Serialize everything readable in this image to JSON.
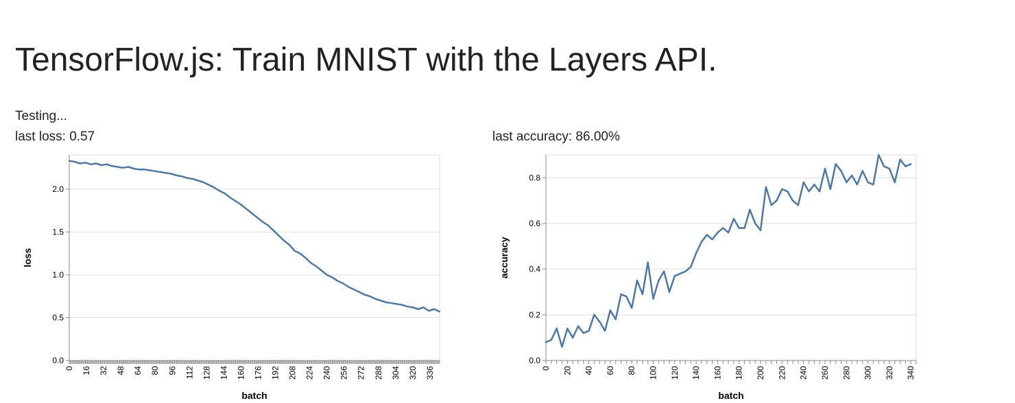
{
  "page": {
    "title": "TensorFlow.js: Train MNIST with the Layers API.",
    "status": "Testing...",
    "last_loss": "last loss: 0.57",
    "last_accuracy": "last accuracy: 86.00%"
  },
  "colors": {
    "line": "#4c78a8",
    "grid": "#dddddd",
    "axis": "#888888"
  },
  "chart_data": [
    {
      "type": "line",
      "title": "",
      "xlabel": "batch",
      "ylabel": "loss",
      "xlim": [
        0,
        345
      ],
      "ylim": [
        0,
        2.4
      ],
      "x_ticks": [
        0,
        16,
        32,
        48,
        64,
        80,
        96,
        112,
        128,
        144,
        160,
        176,
        192,
        208,
        224,
        240,
        256,
        272,
        288,
        304,
        320,
        336
      ],
      "x_minor_tick_step": 1,
      "y_ticks": [
        "0.0",
        "0.5",
        "1.0",
        "1.5",
        "2.0"
      ],
      "y_tick_values": [
        0,
        0.5,
        1.0,
        1.5,
        2.0
      ],
      "grid": true,
      "series": [
        {
          "x": [
            0,
            5,
            10,
            15,
            20,
            25,
            30,
            35,
            40,
            45,
            50,
            55,
            60,
            65,
            70,
            75,
            80,
            85,
            90,
            95,
            100,
            105,
            110,
            115,
            120,
            125,
            130,
            135,
            140,
            145,
            150,
            155,
            160,
            165,
            170,
            175,
            180,
            185,
            190,
            195,
            200,
            205,
            210,
            215,
            220,
            225,
            230,
            235,
            240,
            245,
            250,
            255,
            260,
            265,
            270,
            275,
            280,
            285,
            290,
            295,
            300,
            305,
            310,
            315,
            320,
            325,
            330,
            335,
            340,
            345
          ],
          "y": [
            2.33,
            2.32,
            2.3,
            2.31,
            2.29,
            2.3,
            2.28,
            2.29,
            2.27,
            2.26,
            2.25,
            2.26,
            2.24,
            2.23,
            2.23,
            2.22,
            2.21,
            2.2,
            2.19,
            2.18,
            2.16,
            2.15,
            2.13,
            2.12,
            2.1,
            2.08,
            2.05,
            2.02,
            1.98,
            1.95,
            1.9,
            1.86,
            1.82,
            1.77,
            1.72,
            1.67,
            1.62,
            1.58,
            1.52,
            1.46,
            1.4,
            1.35,
            1.28,
            1.25,
            1.2,
            1.14,
            1.1,
            1.05,
            1.0,
            0.97,
            0.93,
            0.9,
            0.86,
            0.83,
            0.8,
            0.77,
            0.75,
            0.72,
            0.7,
            0.68,
            0.67,
            0.66,
            0.65,
            0.63,
            0.62,
            0.6,
            0.62,
            0.58,
            0.6,
            0.57
          ]
        }
      ]
    },
    {
      "type": "line",
      "title": "",
      "xlabel": "batch",
      "ylabel": "accuracy",
      "xlim": [
        0,
        345
      ],
      "ylim": [
        0,
        0.9
      ],
      "x_ticks": [
        0,
        20,
        40,
        60,
        80,
        100,
        120,
        140,
        160,
        180,
        200,
        220,
        240,
        260,
        280,
        300,
        320,
        340
      ],
      "x_minor_tick_step": 5,
      "y_ticks": [
        "0.0",
        "0.2",
        "0.4",
        "0.6",
        "0.8"
      ],
      "y_tick_values": [
        0,
        0.2,
        0.4,
        0.6,
        0.8
      ],
      "grid": true,
      "series": [
        {
          "x": [
            0,
            5,
            10,
            15,
            20,
            25,
            30,
            35,
            40,
            45,
            50,
            55,
            60,
            65,
            70,
            75,
            80,
            85,
            90,
            95,
            100,
            105,
            110,
            115,
            120,
            125,
            130,
            135,
            140,
            145,
            150,
            155,
            160,
            165,
            170,
            175,
            180,
            185,
            190,
            195,
            200,
            205,
            210,
            215,
            220,
            225,
            230,
            235,
            240,
            245,
            250,
            255,
            260,
            265,
            270,
            275,
            280,
            285,
            290,
            295,
            300,
            305,
            310,
            315,
            320,
            325,
            330,
            335,
            340
          ],
          "y": [
            0.08,
            0.09,
            0.14,
            0.06,
            0.14,
            0.1,
            0.15,
            0.12,
            0.13,
            0.2,
            0.17,
            0.13,
            0.22,
            0.18,
            0.29,
            0.28,
            0.23,
            0.35,
            0.29,
            0.43,
            0.27,
            0.35,
            0.39,
            0.3,
            0.37,
            0.38,
            0.39,
            0.41,
            0.47,
            0.52,
            0.55,
            0.53,
            0.56,
            0.58,
            0.56,
            0.62,
            0.58,
            0.58,
            0.66,
            0.6,
            0.57,
            0.76,
            0.68,
            0.7,
            0.75,
            0.74,
            0.7,
            0.68,
            0.78,
            0.74,
            0.77,
            0.74,
            0.84,
            0.75,
            0.86,
            0.83,
            0.78,
            0.81,
            0.77,
            0.83,
            0.78,
            0.77,
            0.9,
            0.85,
            0.84,
            0.78,
            0.88,
            0.85,
            0.86
          ]
        }
      ]
    }
  ]
}
